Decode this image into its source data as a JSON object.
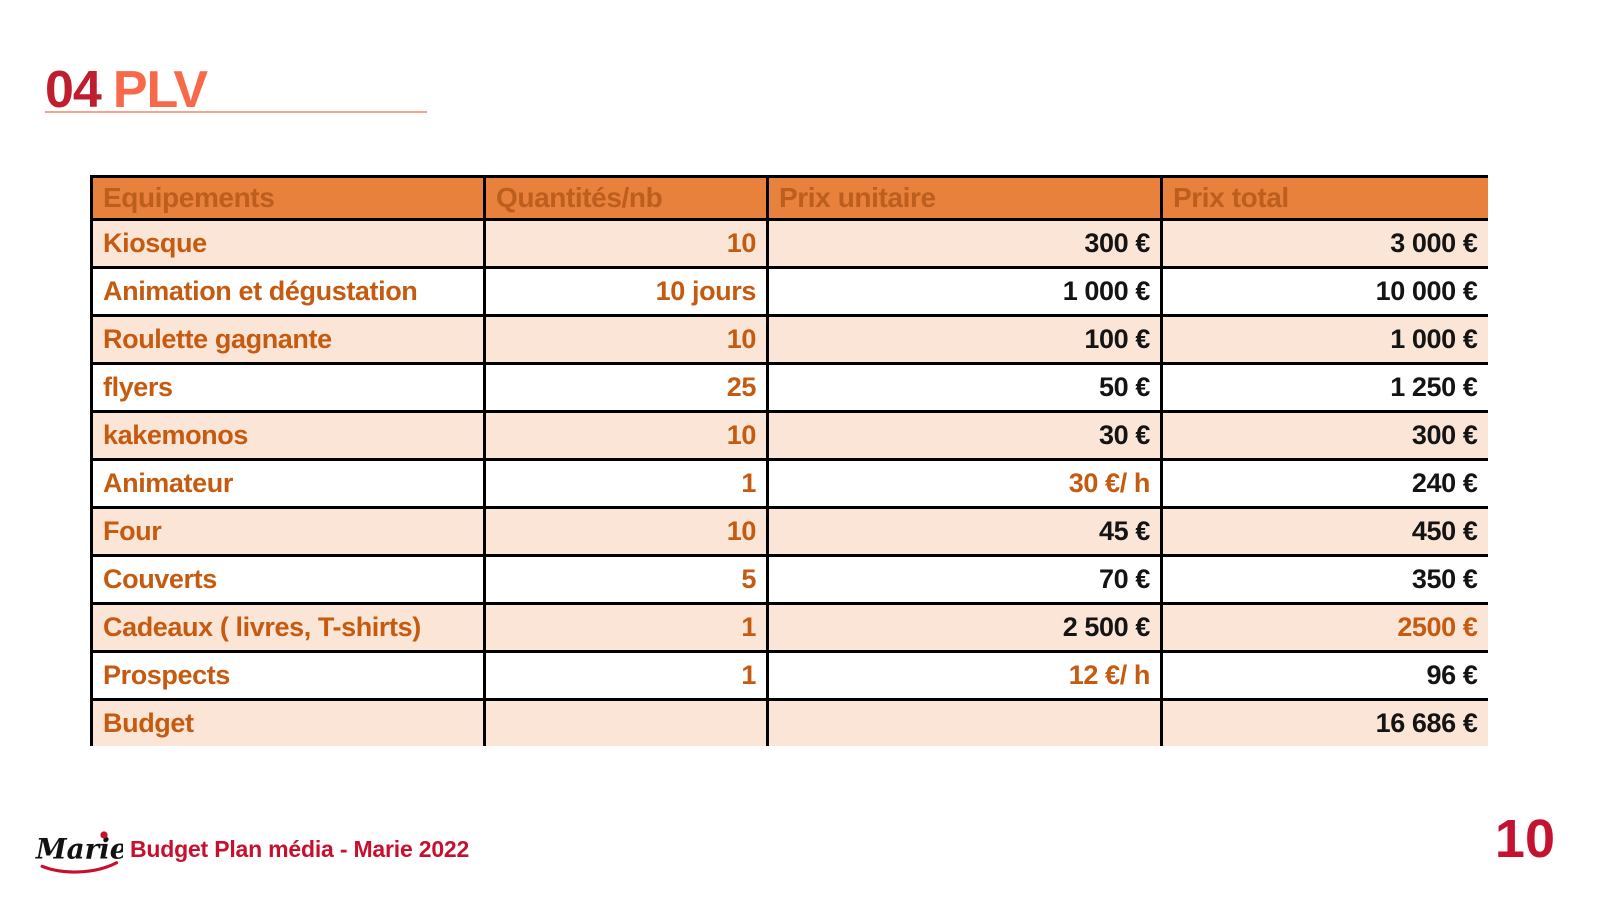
{
  "slide": {
    "title_number": "04",
    "title_text": "PLV",
    "footer_text": "Budget Plan média - Marie 2022",
    "logo_text": "Marie",
    "page_number": "10"
  },
  "colors": {
    "title_number_red": "#BE1E2E",
    "title_accent_orange": "#F8694A",
    "title_rule_salmon": "#F5A48E",
    "table_header_bg": "#E8813C",
    "table_header_text": "#BC5E1E",
    "table_row_peach": "#FBE5D6",
    "table_row_white": "#FFFFFF",
    "table_orange_text": "#C55A11",
    "table_black_text": "#141414",
    "table_border": "#000000",
    "footer_red": "#C8102E",
    "page_number_red": "#C41230"
  },
  "table": {
    "headers": [
      "Equipements",
      "Quantités/nb",
      "Prix unitaire",
      "Prix total"
    ],
    "rows": [
      {
        "equipement": "Kiosque",
        "quantite": "10",
        "prix_unitaire": "300 €",
        "prix_total": "3 000 €",
        "unit_highlight": false,
        "total_highlight": false
      },
      {
        "equipement": "Animation et dégustation",
        "quantite": "10 jours",
        "prix_unitaire": "1 000 €",
        "prix_total": "10 000 €",
        "unit_highlight": false,
        "total_highlight": false
      },
      {
        "equipement": "Roulette gagnante",
        "quantite": "10",
        "prix_unitaire": "100 €",
        "prix_total": "1 000 €",
        "unit_highlight": false,
        "total_highlight": false
      },
      {
        "equipement": "flyers",
        "quantite": "25",
        "prix_unitaire": "50 €",
        "prix_total": "1 250 €",
        "unit_highlight": false,
        "total_highlight": false
      },
      {
        "equipement": "kakemonos",
        "quantite": "10",
        "prix_unitaire": "30 €",
        "prix_total": "300 €",
        "unit_highlight": false,
        "total_highlight": false
      },
      {
        "equipement": "Animateur",
        "quantite": "1",
        "prix_unitaire": "30 €/ h",
        "prix_total": "240 €",
        "unit_highlight": true,
        "total_highlight": false
      },
      {
        "equipement": "Four",
        "quantite": "10",
        "prix_unitaire": "45 €",
        "prix_total": "450 €",
        "unit_highlight": false,
        "total_highlight": false
      },
      {
        "equipement": "Couverts",
        "quantite": "5",
        "prix_unitaire": "70 €",
        "prix_total": "350 €",
        "unit_highlight": false,
        "total_highlight": false
      },
      {
        "equipement": "Cadeaux ( livres, T-shirts)",
        "quantite": "1",
        "prix_unitaire": "2 500 €",
        "prix_total": "2500 €",
        "unit_highlight": false,
        "total_highlight": true
      },
      {
        "equipement": "Prospects",
        "quantite": "1",
        "prix_unitaire": "12 €/ h",
        "prix_total": "96 €",
        "unit_highlight": true,
        "total_highlight": false
      },
      {
        "equipement": "Budget",
        "quantite": "",
        "prix_unitaire": "",
        "prix_total": "16 686 €",
        "unit_highlight": false,
        "total_highlight": false
      }
    ]
  },
  "chart_data": {
    "type": "table",
    "title": "04 PLV",
    "columns": [
      "Equipements",
      "Quantités/nb",
      "Prix unitaire",
      "Prix total"
    ],
    "rows": [
      [
        "Kiosque",
        "10",
        "300 €",
        "3 000 €"
      ],
      [
        "Animation et dégustation",
        "10 jours",
        "1 000 €",
        "10 000 €"
      ],
      [
        "Roulette gagnante",
        "10",
        "100 €",
        "1 000 €"
      ],
      [
        "flyers",
        "25",
        "50 €",
        "1 250 €"
      ],
      [
        "kakemonos",
        "10",
        "30 €",
        "300 €"
      ],
      [
        "Animateur",
        "1",
        "30 €/ h",
        "240 €"
      ],
      [
        "Four",
        "10",
        "45 €",
        "450 €"
      ],
      [
        "Couverts",
        "5",
        "70 €",
        "350 €"
      ],
      [
        "Cadeaux ( livres, T-shirts)",
        "1",
        "2 500 €",
        "2500 €"
      ],
      [
        "Prospects",
        "1",
        "12 €/ h",
        "96 €"
      ],
      [
        "Budget",
        "",
        "",
        "16 686 €"
      ]
    ]
  }
}
